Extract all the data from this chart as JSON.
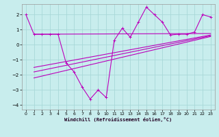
{
  "xlabel": "Windchill (Refroidissement éolien,°C)",
  "bg_color": "#c8eded",
  "grid_color": "#a8d8d8",
  "line_color": "#bb00bb",
  "xlim": [
    -0.5,
    23.5
  ],
  "ylim": [
    -4.3,
    2.7
  ],
  "xticks": [
    0,
    1,
    2,
    3,
    4,
    5,
    6,
    7,
    8,
    9,
    10,
    11,
    12,
    13,
    14,
    15,
    16,
    17,
    18,
    19,
    20,
    21,
    22,
    23
  ],
  "yticks": [
    -4,
    -3,
    -2,
    -1,
    0,
    1,
    2
  ],
  "data_x": [
    0,
    1,
    2,
    3,
    4,
    5,
    6,
    7,
    8,
    9,
    10,
    11,
    12,
    13,
    14,
    15,
    16,
    17,
    18,
    19,
    20,
    21,
    22,
    23
  ],
  "data_y": [
    2.0,
    0.7,
    0.7,
    0.7,
    0.7,
    -1.2,
    -1.8,
    -2.8,
    -3.6,
    -3.0,
    -3.5,
    0.3,
    1.1,
    0.5,
    1.5,
    2.5,
    2.0,
    1.5,
    0.65,
    0.7,
    0.7,
    0.85,
    2.0,
    1.85
  ],
  "ref_lines": [
    {
      "x0": 1,
      "y0": 0.7,
      "x1": 23,
      "y1": 0.75
    },
    {
      "x0": 1,
      "y0": -1.5,
      "x1": 23,
      "y1": 0.65
    },
    {
      "x0": 1,
      "y0": -1.8,
      "x1": 23,
      "y1": 0.6
    },
    {
      "x0": 1,
      "y0": -2.2,
      "x1": 23,
      "y1": 0.55
    }
  ]
}
